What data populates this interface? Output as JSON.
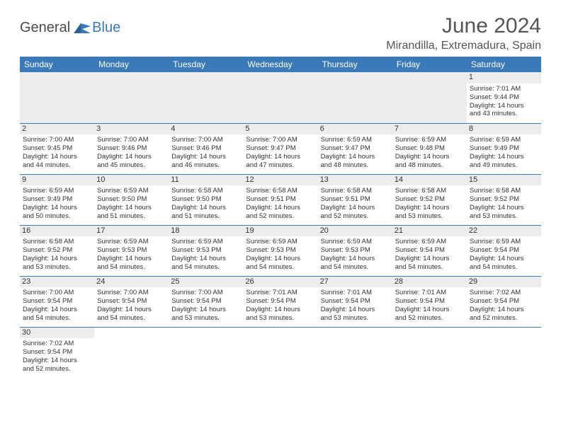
{
  "logo": {
    "general": "General",
    "blue": "Blue"
  },
  "title": "June 2024",
  "location": "Mirandilla, Extremadura, Spain",
  "headers": [
    "Sunday",
    "Monday",
    "Tuesday",
    "Wednesday",
    "Thursday",
    "Friday",
    "Saturday"
  ],
  "colors": {
    "header_bg": "#3a7ab8",
    "header_text": "#ffffff",
    "daybar_bg": "#ececec",
    "border": "#3a7ab8"
  },
  "weeks": [
    [
      null,
      null,
      null,
      null,
      null,
      null,
      {
        "n": "1",
        "sr": "Sunrise: 7:01 AM",
        "ss": "Sunset: 9:44 PM",
        "dl1": "Daylight: 14 hours",
        "dl2": "and 43 minutes."
      }
    ],
    [
      {
        "n": "2",
        "sr": "Sunrise: 7:00 AM",
        "ss": "Sunset: 9:45 PM",
        "dl1": "Daylight: 14 hours",
        "dl2": "and 44 minutes."
      },
      {
        "n": "3",
        "sr": "Sunrise: 7:00 AM",
        "ss": "Sunset: 9:46 PM",
        "dl1": "Daylight: 14 hours",
        "dl2": "and 45 minutes."
      },
      {
        "n": "4",
        "sr": "Sunrise: 7:00 AM",
        "ss": "Sunset: 9:46 PM",
        "dl1": "Daylight: 14 hours",
        "dl2": "and 46 minutes."
      },
      {
        "n": "5",
        "sr": "Sunrise: 7:00 AM",
        "ss": "Sunset: 9:47 PM",
        "dl1": "Daylight: 14 hours",
        "dl2": "and 47 minutes."
      },
      {
        "n": "6",
        "sr": "Sunrise: 6:59 AM",
        "ss": "Sunset: 9:47 PM",
        "dl1": "Daylight: 14 hours",
        "dl2": "and 48 minutes."
      },
      {
        "n": "7",
        "sr": "Sunrise: 6:59 AM",
        "ss": "Sunset: 9:48 PM",
        "dl1": "Daylight: 14 hours",
        "dl2": "and 48 minutes."
      },
      {
        "n": "8",
        "sr": "Sunrise: 6:59 AM",
        "ss": "Sunset: 9:49 PM",
        "dl1": "Daylight: 14 hours",
        "dl2": "and 49 minutes."
      }
    ],
    [
      {
        "n": "9",
        "sr": "Sunrise: 6:59 AM",
        "ss": "Sunset: 9:49 PM",
        "dl1": "Daylight: 14 hours",
        "dl2": "and 50 minutes."
      },
      {
        "n": "10",
        "sr": "Sunrise: 6:59 AM",
        "ss": "Sunset: 9:50 PM",
        "dl1": "Daylight: 14 hours",
        "dl2": "and 51 minutes."
      },
      {
        "n": "11",
        "sr": "Sunrise: 6:58 AM",
        "ss": "Sunset: 9:50 PM",
        "dl1": "Daylight: 14 hours",
        "dl2": "and 51 minutes."
      },
      {
        "n": "12",
        "sr": "Sunrise: 6:58 AM",
        "ss": "Sunset: 9:51 PM",
        "dl1": "Daylight: 14 hours",
        "dl2": "and 52 minutes."
      },
      {
        "n": "13",
        "sr": "Sunrise: 6:58 AM",
        "ss": "Sunset: 9:51 PM",
        "dl1": "Daylight: 14 hours",
        "dl2": "and 52 minutes."
      },
      {
        "n": "14",
        "sr": "Sunrise: 6:58 AM",
        "ss": "Sunset: 9:52 PM",
        "dl1": "Daylight: 14 hours",
        "dl2": "and 53 minutes."
      },
      {
        "n": "15",
        "sr": "Sunrise: 6:58 AM",
        "ss": "Sunset: 9:52 PM",
        "dl1": "Daylight: 14 hours",
        "dl2": "and 53 minutes."
      }
    ],
    [
      {
        "n": "16",
        "sr": "Sunrise: 6:58 AM",
        "ss": "Sunset: 9:52 PM",
        "dl1": "Daylight: 14 hours",
        "dl2": "and 53 minutes."
      },
      {
        "n": "17",
        "sr": "Sunrise: 6:59 AM",
        "ss": "Sunset: 9:53 PM",
        "dl1": "Daylight: 14 hours",
        "dl2": "and 54 minutes."
      },
      {
        "n": "18",
        "sr": "Sunrise: 6:59 AM",
        "ss": "Sunset: 9:53 PM",
        "dl1": "Daylight: 14 hours",
        "dl2": "and 54 minutes."
      },
      {
        "n": "19",
        "sr": "Sunrise: 6:59 AM",
        "ss": "Sunset: 9:53 PM",
        "dl1": "Daylight: 14 hours",
        "dl2": "and 54 minutes."
      },
      {
        "n": "20",
        "sr": "Sunrise: 6:59 AM",
        "ss": "Sunset: 9:53 PM",
        "dl1": "Daylight: 14 hours",
        "dl2": "and 54 minutes."
      },
      {
        "n": "21",
        "sr": "Sunrise: 6:59 AM",
        "ss": "Sunset: 9:54 PM",
        "dl1": "Daylight: 14 hours",
        "dl2": "and 54 minutes."
      },
      {
        "n": "22",
        "sr": "Sunrise: 6:59 AM",
        "ss": "Sunset: 9:54 PM",
        "dl1": "Daylight: 14 hours",
        "dl2": "and 54 minutes."
      }
    ],
    [
      {
        "n": "23",
        "sr": "Sunrise: 7:00 AM",
        "ss": "Sunset: 9:54 PM",
        "dl1": "Daylight: 14 hours",
        "dl2": "and 54 minutes."
      },
      {
        "n": "24",
        "sr": "Sunrise: 7:00 AM",
        "ss": "Sunset: 9:54 PM",
        "dl1": "Daylight: 14 hours",
        "dl2": "and 54 minutes."
      },
      {
        "n": "25",
        "sr": "Sunrise: 7:00 AM",
        "ss": "Sunset: 9:54 PM",
        "dl1": "Daylight: 14 hours",
        "dl2": "and 53 minutes."
      },
      {
        "n": "26",
        "sr": "Sunrise: 7:01 AM",
        "ss": "Sunset: 9:54 PM",
        "dl1": "Daylight: 14 hours",
        "dl2": "and 53 minutes."
      },
      {
        "n": "27",
        "sr": "Sunrise: 7:01 AM",
        "ss": "Sunset: 9:54 PM",
        "dl1": "Daylight: 14 hours",
        "dl2": "and 53 minutes."
      },
      {
        "n": "28",
        "sr": "Sunrise: 7:01 AM",
        "ss": "Sunset: 9:54 PM",
        "dl1": "Daylight: 14 hours",
        "dl2": "and 52 minutes."
      },
      {
        "n": "29",
        "sr": "Sunrise: 7:02 AM",
        "ss": "Sunset: 9:54 PM",
        "dl1": "Daylight: 14 hours",
        "dl2": "and 52 minutes."
      }
    ],
    [
      {
        "n": "30",
        "sr": "Sunrise: 7:02 AM",
        "ss": "Sunset: 9:54 PM",
        "dl1": "Daylight: 14 hours",
        "dl2": "and 52 minutes."
      },
      null,
      null,
      null,
      null,
      null,
      null
    ]
  ]
}
